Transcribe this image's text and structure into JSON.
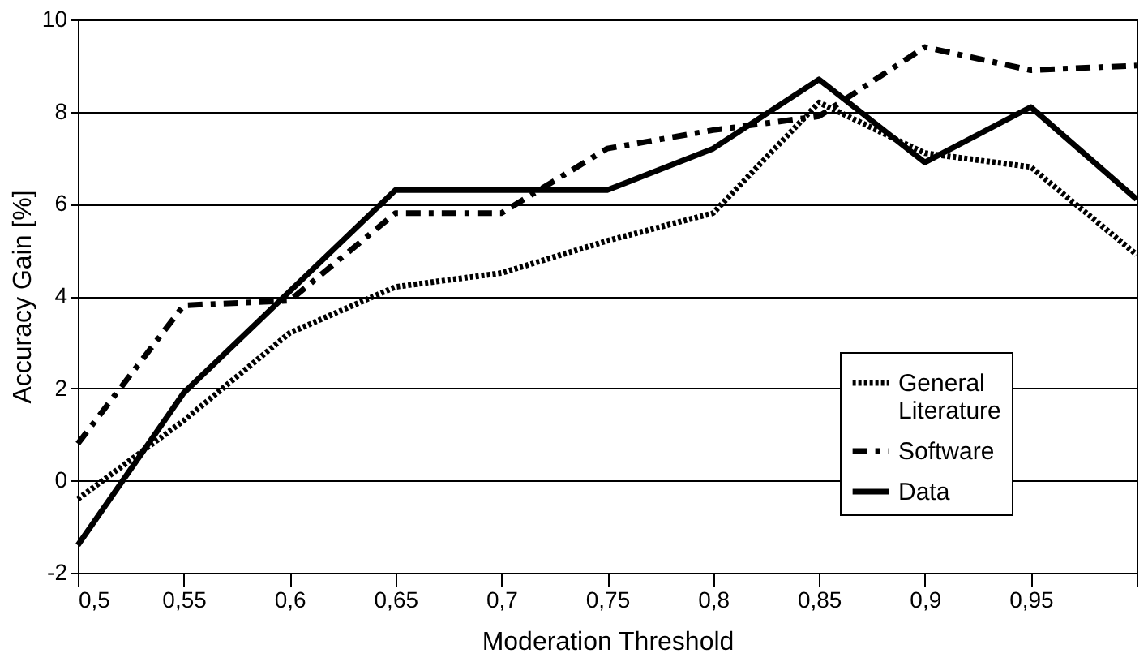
{
  "chart_data": {
    "type": "line",
    "xlabel": "Moderation Threshold",
    "ylabel": "Accuracy Gain [%]",
    "x": [
      0.5,
      0.55,
      0.6,
      0.65,
      0.7,
      0.75,
      0.8,
      0.85,
      0.9,
      0.95,
      1.0
    ],
    "series": [
      {
        "name": "General Literature",
        "color": "#000000",
        "line_style": "dotted",
        "values": [
          -0.4,
          1.3,
          3.2,
          4.2,
          4.5,
          5.2,
          5.8,
          8.2,
          7.1,
          6.8,
          4.9
        ]
      },
      {
        "name": "Software",
        "color": "#000000",
        "line_style": "dashed",
        "values": [
          0.8,
          3.8,
          3.9,
          5.8,
          5.8,
          7.2,
          7.6,
          7.9,
          9.4,
          8.9,
          9.0
        ]
      },
      {
        "name": "Data",
        "color": "#000000",
        "line_style": "solid",
        "values": [
          -1.4,
          1.9,
          4.1,
          6.3,
          6.3,
          6.3,
          7.2,
          8.7,
          6.9,
          8.1,
          6.1
        ]
      }
    ],
    "xlim": [
      0.5,
      1.0
    ],
    "xticks": [
      {
        "value": 0.5,
        "label": "0,5"
      },
      {
        "value": 0.55,
        "label": "0,55"
      },
      {
        "value": 0.6,
        "label": "0,6"
      },
      {
        "value": 0.65,
        "label": "0,65"
      },
      {
        "value": 0.7,
        "label": "0,7"
      },
      {
        "value": 0.75,
        "label": "0,75"
      },
      {
        "value": 0.8,
        "label": "0,8"
      },
      {
        "value": 0.85,
        "label": "0,85"
      },
      {
        "value": 0.9,
        "label": "0,9"
      },
      {
        "value": 0.95,
        "label": "0,95"
      },
      {
        "value": 1.0,
        "label": null
      }
    ],
    "ylim": [
      -2,
      10
    ],
    "yticks": [
      -2,
      0,
      2,
      4,
      6,
      8,
      10
    ],
    "grid": "y",
    "legend": "bottom right",
    "marker": "none"
  }
}
